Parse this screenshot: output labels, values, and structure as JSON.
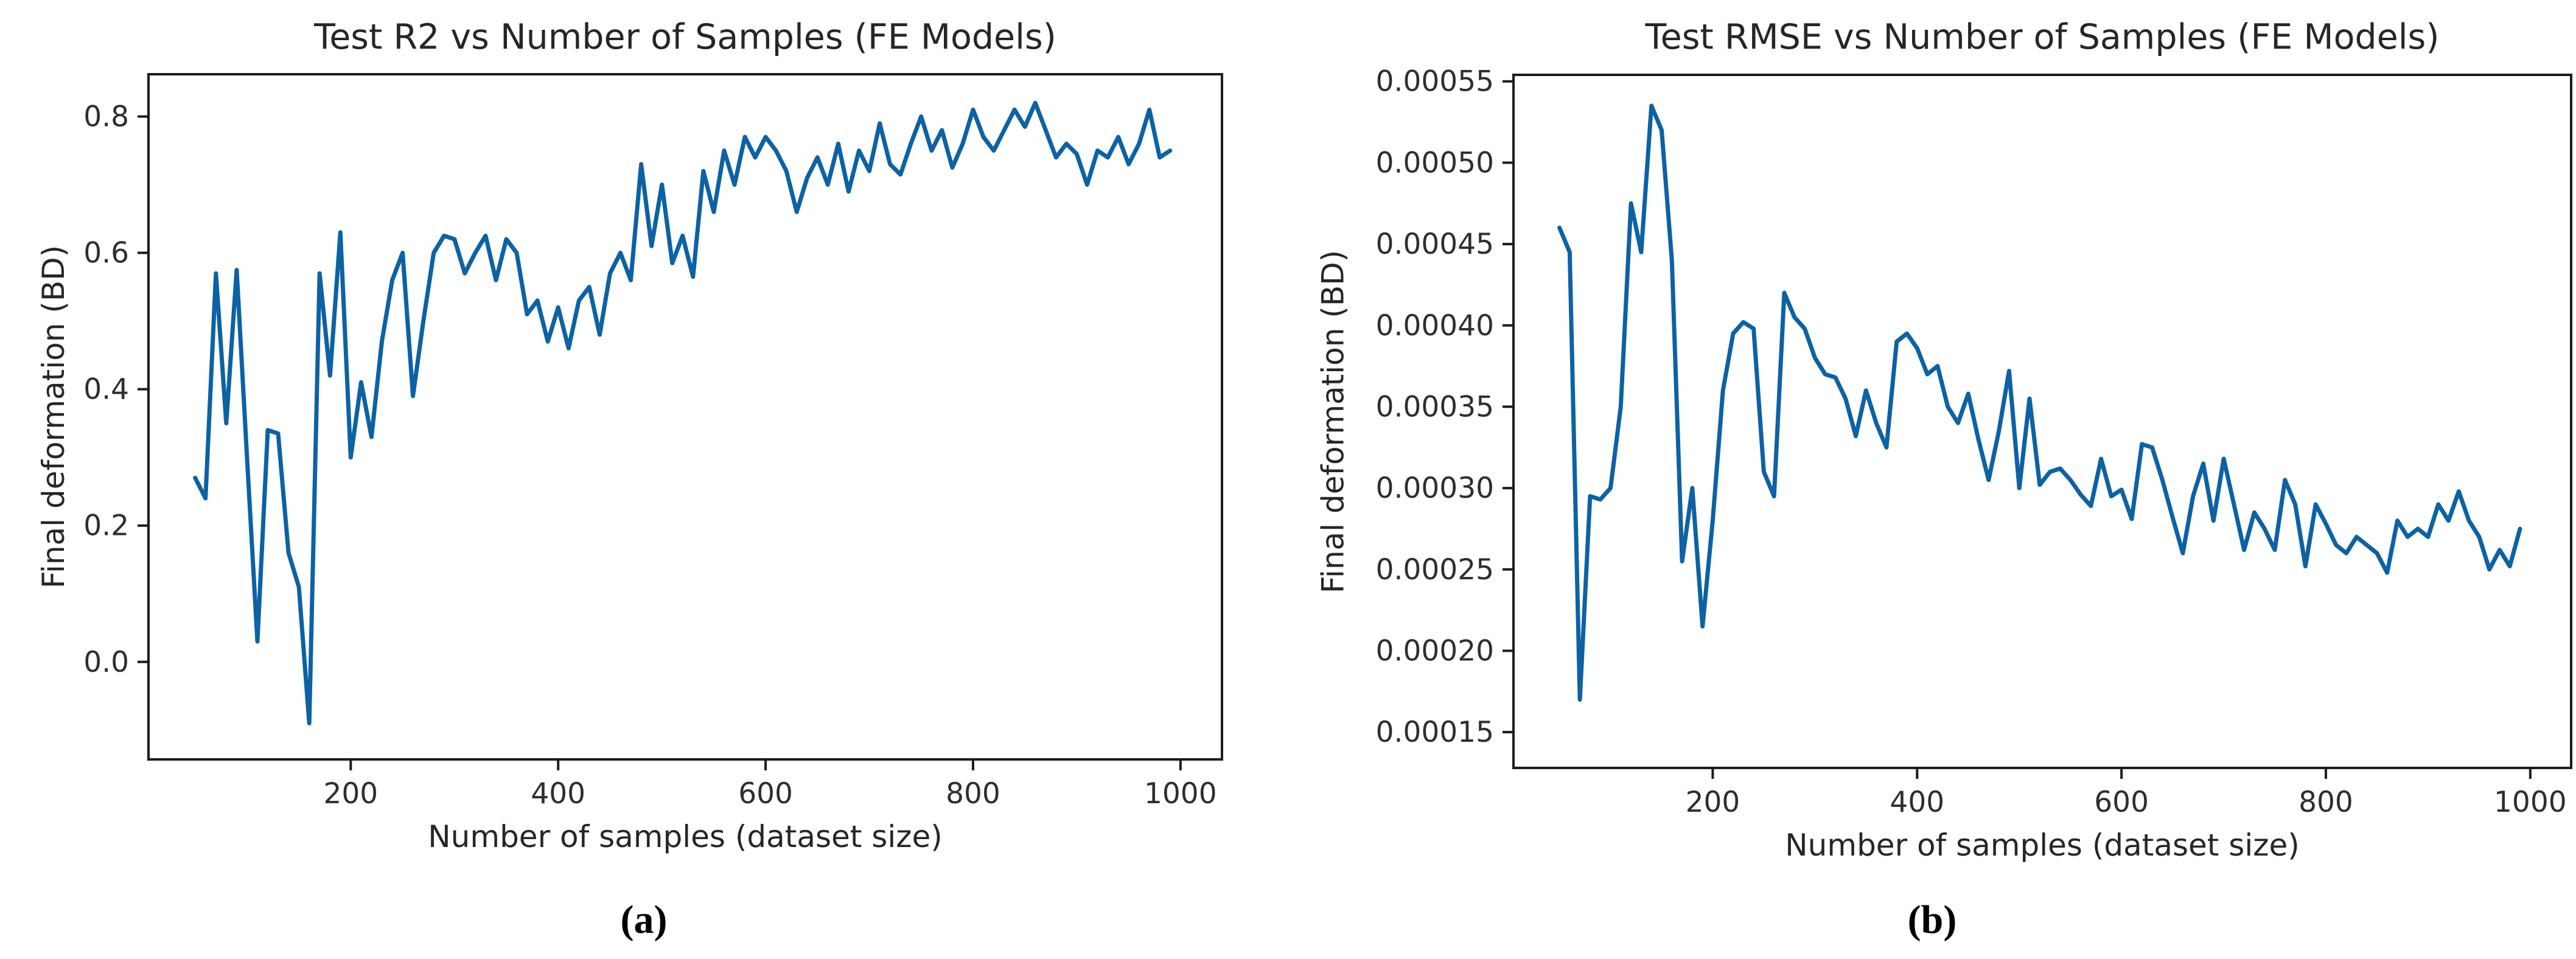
{
  "figure": {
    "background": "#ffffff",
    "captions": {
      "a": "(a)",
      "b": "(b)"
    }
  },
  "chart_data": [
    {
      "type": "line",
      "title": "Test R2 vs Number of Samples (FE Models)",
      "xlabel": "Number of samples (dataset size)",
      "ylabel": "Final deformation (BD)",
      "grid": false,
      "legend": "none",
      "line_color": "#0c62a4",
      "frame_color": "#1c1c1c",
      "xlim": [
        5,
        1040
      ],
      "ylim": [
        -0.143,
        0.862
      ],
      "xticks": [
        200,
        400,
        600,
        800,
        1000
      ],
      "yticks": [
        0.0,
        0.2,
        0.4,
        0.6,
        0.8
      ],
      "ytick_decimals": 1,
      "x": [
        50,
        60,
        70,
        80,
        90,
        100,
        110,
        120,
        130,
        140,
        150,
        160,
        170,
        180,
        190,
        200,
        210,
        220,
        230,
        240,
        250,
        260,
        270,
        280,
        290,
        300,
        310,
        320,
        330,
        340,
        350,
        360,
        370,
        380,
        390,
        400,
        410,
        420,
        430,
        440,
        450,
        460,
        470,
        480,
        490,
        500,
        510,
        520,
        530,
        540,
        550,
        560,
        570,
        580,
        590,
        600,
        610,
        620,
        630,
        640,
        650,
        660,
        670,
        680,
        690,
        700,
        710,
        720,
        730,
        740,
        750,
        760,
        770,
        780,
        790,
        800,
        810,
        820,
        830,
        840,
        850,
        860,
        870,
        880,
        890,
        900,
        910,
        920,
        930,
        940,
        950,
        960,
        970,
        980,
        990
      ],
      "y": [
        0.27,
        0.24,
        0.57,
        0.35,
        0.575,
        0.3,
        0.03,
        0.34,
        0.335,
        0.16,
        0.11,
        -0.09,
        0.57,
        0.42,
        0.63,
        0.3,
        0.41,
        0.33,
        0.47,
        0.56,
        0.6,
        0.39,
        0.5,
        0.6,
        0.625,
        0.62,
        0.57,
        0.6,
        0.625,
        0.56,
        0.62,
        0.6,
        0.51,
        0.53,
        0.47,
        0.52,
        0.46,
        0.53,
        0.55,
        0.48,
        0.57,
        0.6,
        0.56,
        0.73,
        0.61,
        0.7,
        0.585,
        0.625,
        0.565,
        0.72,
        0.66,
        0.75,
        0.7,
        0.77,
        0.74,
        0.77,
        0.75,
        0.72,
        0.66,
        0.71,
        0.74,
        0.7,
        0.76,
        0.69,
        0.75,
        0.72,
        0.79,
        0.73,
        0.715,
        0.76,
        0.8,
        0.75,
        0.78,
        0.725,
        0.76,
        0.81,
        0.77,
        0.75,
        0.78,
        0.81,
        0.785,
        0.82,
        0.78,
        0.74,
        0.76,
        0.745,
        0.7,
        0.75,
        0.74,
        0.77,
        0.73,
        0.76,
        0.81,
        0.74,
        0.75
      ]
    },
    {
      "type": "line",
      "title": "Test RMSE vs Number of Samples (FE Models)",
      "xlabel": "Number of samples (dataset size)",
      "ylabel": "Final deformation (BD)",
      "grid": false,
      "legend": "none",
      "line_color": "#0c62a4",
      "frame_color": "#1c1c1c",
      "xlim": [
        5,
        1040
      ],
      "ylim": [
        0.000128,
        0.000554
      ],
      "xticks": [
        200,
        400,
        600,
        800,
        1000
      ],
      "yticks": [
        0.00015,
        0.0002,
        0.00025,
        0.0003,
        0.00035,
        0.0004,
        0.00045,
        0.0005,
        0.00055
      ],
      "ytick_decimals": 5,
      "x": [
        50,
        60,
        70,
        80,
        90,
        100,
        110,
        120,
        130,
        140,
        150,
        160,
        170,
        180,
        190,
        200,
        210,
        220,
        230,
        240,
        250,
        260,
        270,
        280,
        290,
        300,
        310,
        320,
        330,
        340,
        350,
        360,
        370,
        380,
        390,
        400,
        410,
        420,
        430,
        440,
        450,
        460,
        470,
        480,
        490,
        500,
        510,
        520,
        530,
        540,
        550,
        560,
        570,
        580,
        590,
        600,
        610,
        620,
        630,
        640,
        650,
        660,
        670,
        680,
        690,
        700,
        710,
        720,
        730,
        740,
        750,
        760,
        770,
        780,
        790,
        800,
        810,
        820,
        830,
        840,
        850,
        860,
        870,
        880,
        890,
        900,
        910,
        920,
        930,
        940,
        950,
        960,
        970,
        980,
        990
      ],
      "y": [
        0.00046,
        0.000445,
        0.00017,
        0.000295,
        0.000293,
        0.0003,
        0.00035,
        0.000475,
        0.000445,
        0.000535,
        0.00052,
        0.00044,
        0.000255,
        0.0003,
        0.000215,
        0.00028,
        0.00036,
        0.000395,
        0.000402,
        0.000398,
        0.00031,
        0.000295,
        0.00042,
        0.000405,
        0.000398,
        0.00038,
        0.00037,
        0.000368,
        0.000355,
        0.000332,
        0.00036,
        0.00034,
        0.000325,
        0.00039,
        0.000395,
        0.000386,
        0.00037,
        0.000375,
        0.00035,
        0.00034,
        0.000358,
        0.00033,
        0.000305,
        0.000335,
        0.000372,
        0.0003,
        0.000355,
        0.000302,
        0.00031,
        0.000312,
        0.000305,
        0.000296,
        0.000289,
        0.000318,
        0.000295,
        0.000299,
        0.000281,
        0.000327,
        0.000325,
        0.000305,
        0.000282,
        0.00026,
        0.000295,
        0.000315,
        0.00028,
        0.000318,
        0.00029,
        0.000262,
        0.000285,
        0.000275,
        0.000262,
        0.000305,
        0.00029,
        0.000252,
        0.00029,
        0.000278,
        0.000265,
        0.00026,
        0.00027,
        0.000265,
        0.00026,
        0.000248,
        0.00028,
        0.00027,
        0.000275,
        0.00027,
        0.00029,
        0.00028,
        0.000298,
        0.00028,
        0.00027,
        0.00025,
        0.000262,
        0.000252,
        0.000275
      ]
    }
  ]
}
